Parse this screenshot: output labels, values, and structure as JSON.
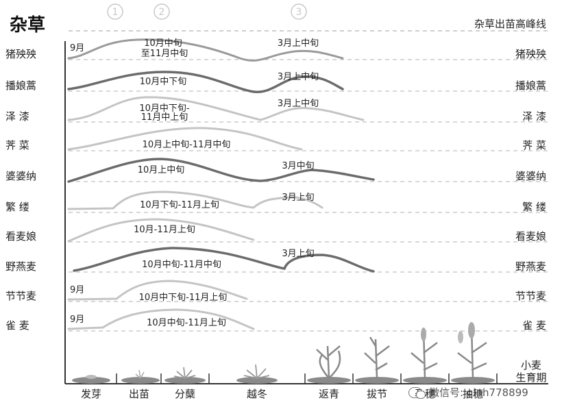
{
  "title": "杂草",
  "peak_label": "杂草出苗高峰线",
  "peak_markers": [
    "①",
    "②",
    "③"
  ],
  "weeds": [
    {
      "name": "猪殃殃",
      "right_name": "猪殃殃",
      "style": "mid",
      "pre": "9月",
      "labels": [
        "10月中旬",
        "至11月中旬",
        "3月上中旬"
      ]
    },
    {
      "name": "播娘蒿",
      "right_name": "播娘蒿",
      "style": "dark",
      "pre": "",
      "labels": [
        "10月中下旬",
        "3月上中旬"
      ]
    },
    {
      "name": "泽  漆",
      "right_name": "泽    漆",
      "style": "light",
      "pre": "",
      "labels": [
        "10月中下旬-",
        "11月中上旬",
        "3月上中旬"
      ]
    },
    {
      "name": "荠  菜",
      "right_name": "荠    菜",
      "style": "light",
      "pre": "",
      "labels": [
        "10月上中旬-11月中旬"
      ]
    },
    {
      "name": "婆婆纳",
      "right_name": "婆婆纳",
      "style": "dark",
      "pre": "",
      "labels": [
        "10月上中旬",
        "3月中旬"
      ]
    },
    {
      "name": "繁  缕",
      "right_name": "繁    缕",
      "style": "light",
      "pre": "",
      "labels": [
        "10月下旬-11月上旬",
        "3月上旬"
      ]
    },
    {
      "name": "看麦娘",
      "right_name": "看麦娘",
      "style": "light",
      "pre": "",
      "labels": [
        "10月-11月上旬"
      ]
    },
    {
      "name": "野燕麦",
      "right_name": "野燕麦",
      "style": "dark",
      "pre": "",
      "labels": [
        "10月中旬-11月中旬",
        "3月上旬"
      ]
    },
    {
      "name": "节节麦",
      "right_name": "节节麦",
      "style": "light",
      "pre": "9月",
      "labels": [
        "10月中下旬-11月上旬"
      ]
    },
    {
      "name": "雀  麦",
      "right_name": "雀    麦",
      "style": "light",
      "pre": "9月",
      "labels": [
        "10月中旬-11月上旬"
      ]
    }
  ],
  "stages": [
    "发芽",
    "出苗",
    "分蘖",
    "越冬",
    "返青",
    "拔节",
    "孕穗",
    "抽穗"
  ],
  "wheat_label": [
    "小麦",
    "生育期"
  ],
  "watermark": "微信号: qlnh778899",
  "colors": {
    "dark": "#6b6b6b",
    "mid": "#9a9a9a",
    "light": "#c4c4c4",
    "axis": "#333333",
    "dashed": "#b0b0b0"
  }
}
